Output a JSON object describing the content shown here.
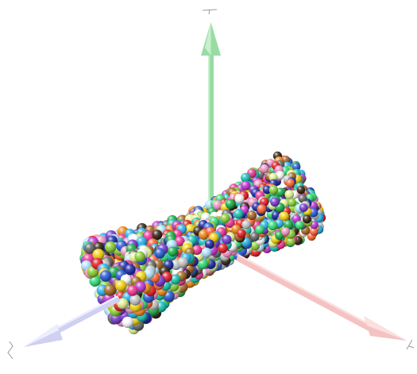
{
  "scene": {
    "background": "#ffffff",
    "axes": [
      {
        "id": "y",
        "label": "",
        "color": "#8fd79a"
      },
      {
        "id": "x",
        "label": "",
        "color": "#f2b8b8"
      },
      {
        "id": "z",
        "label": "",
        "color": "#c8c8ee"
      }
    ],
    "particles": {
      "shape": "sphere",
      "count_estimate": 1500,
      "palette": [
        "#e8242c",
        "#f28c1e",
        "#f6d61a",
        "#8fd23a",
        "#22b24c",
        "#1fc6b4",
        "#31b7ee",
        "#2e5fd8",
        "#2230a8",
        "#7a3fd0",
        "#c23bd4",
        "#f03d9a",
        "#f79ac8",
        "#ffffff",
        "#c9c9c9",
        "#6a6a6a",
        "#3a2a1a",
        "#a86a2a",
        "#b6e6ff",
        "#e6f79a",
        "#39e07a",
        "#ff6a3a"
      ]
    }
  }
}
